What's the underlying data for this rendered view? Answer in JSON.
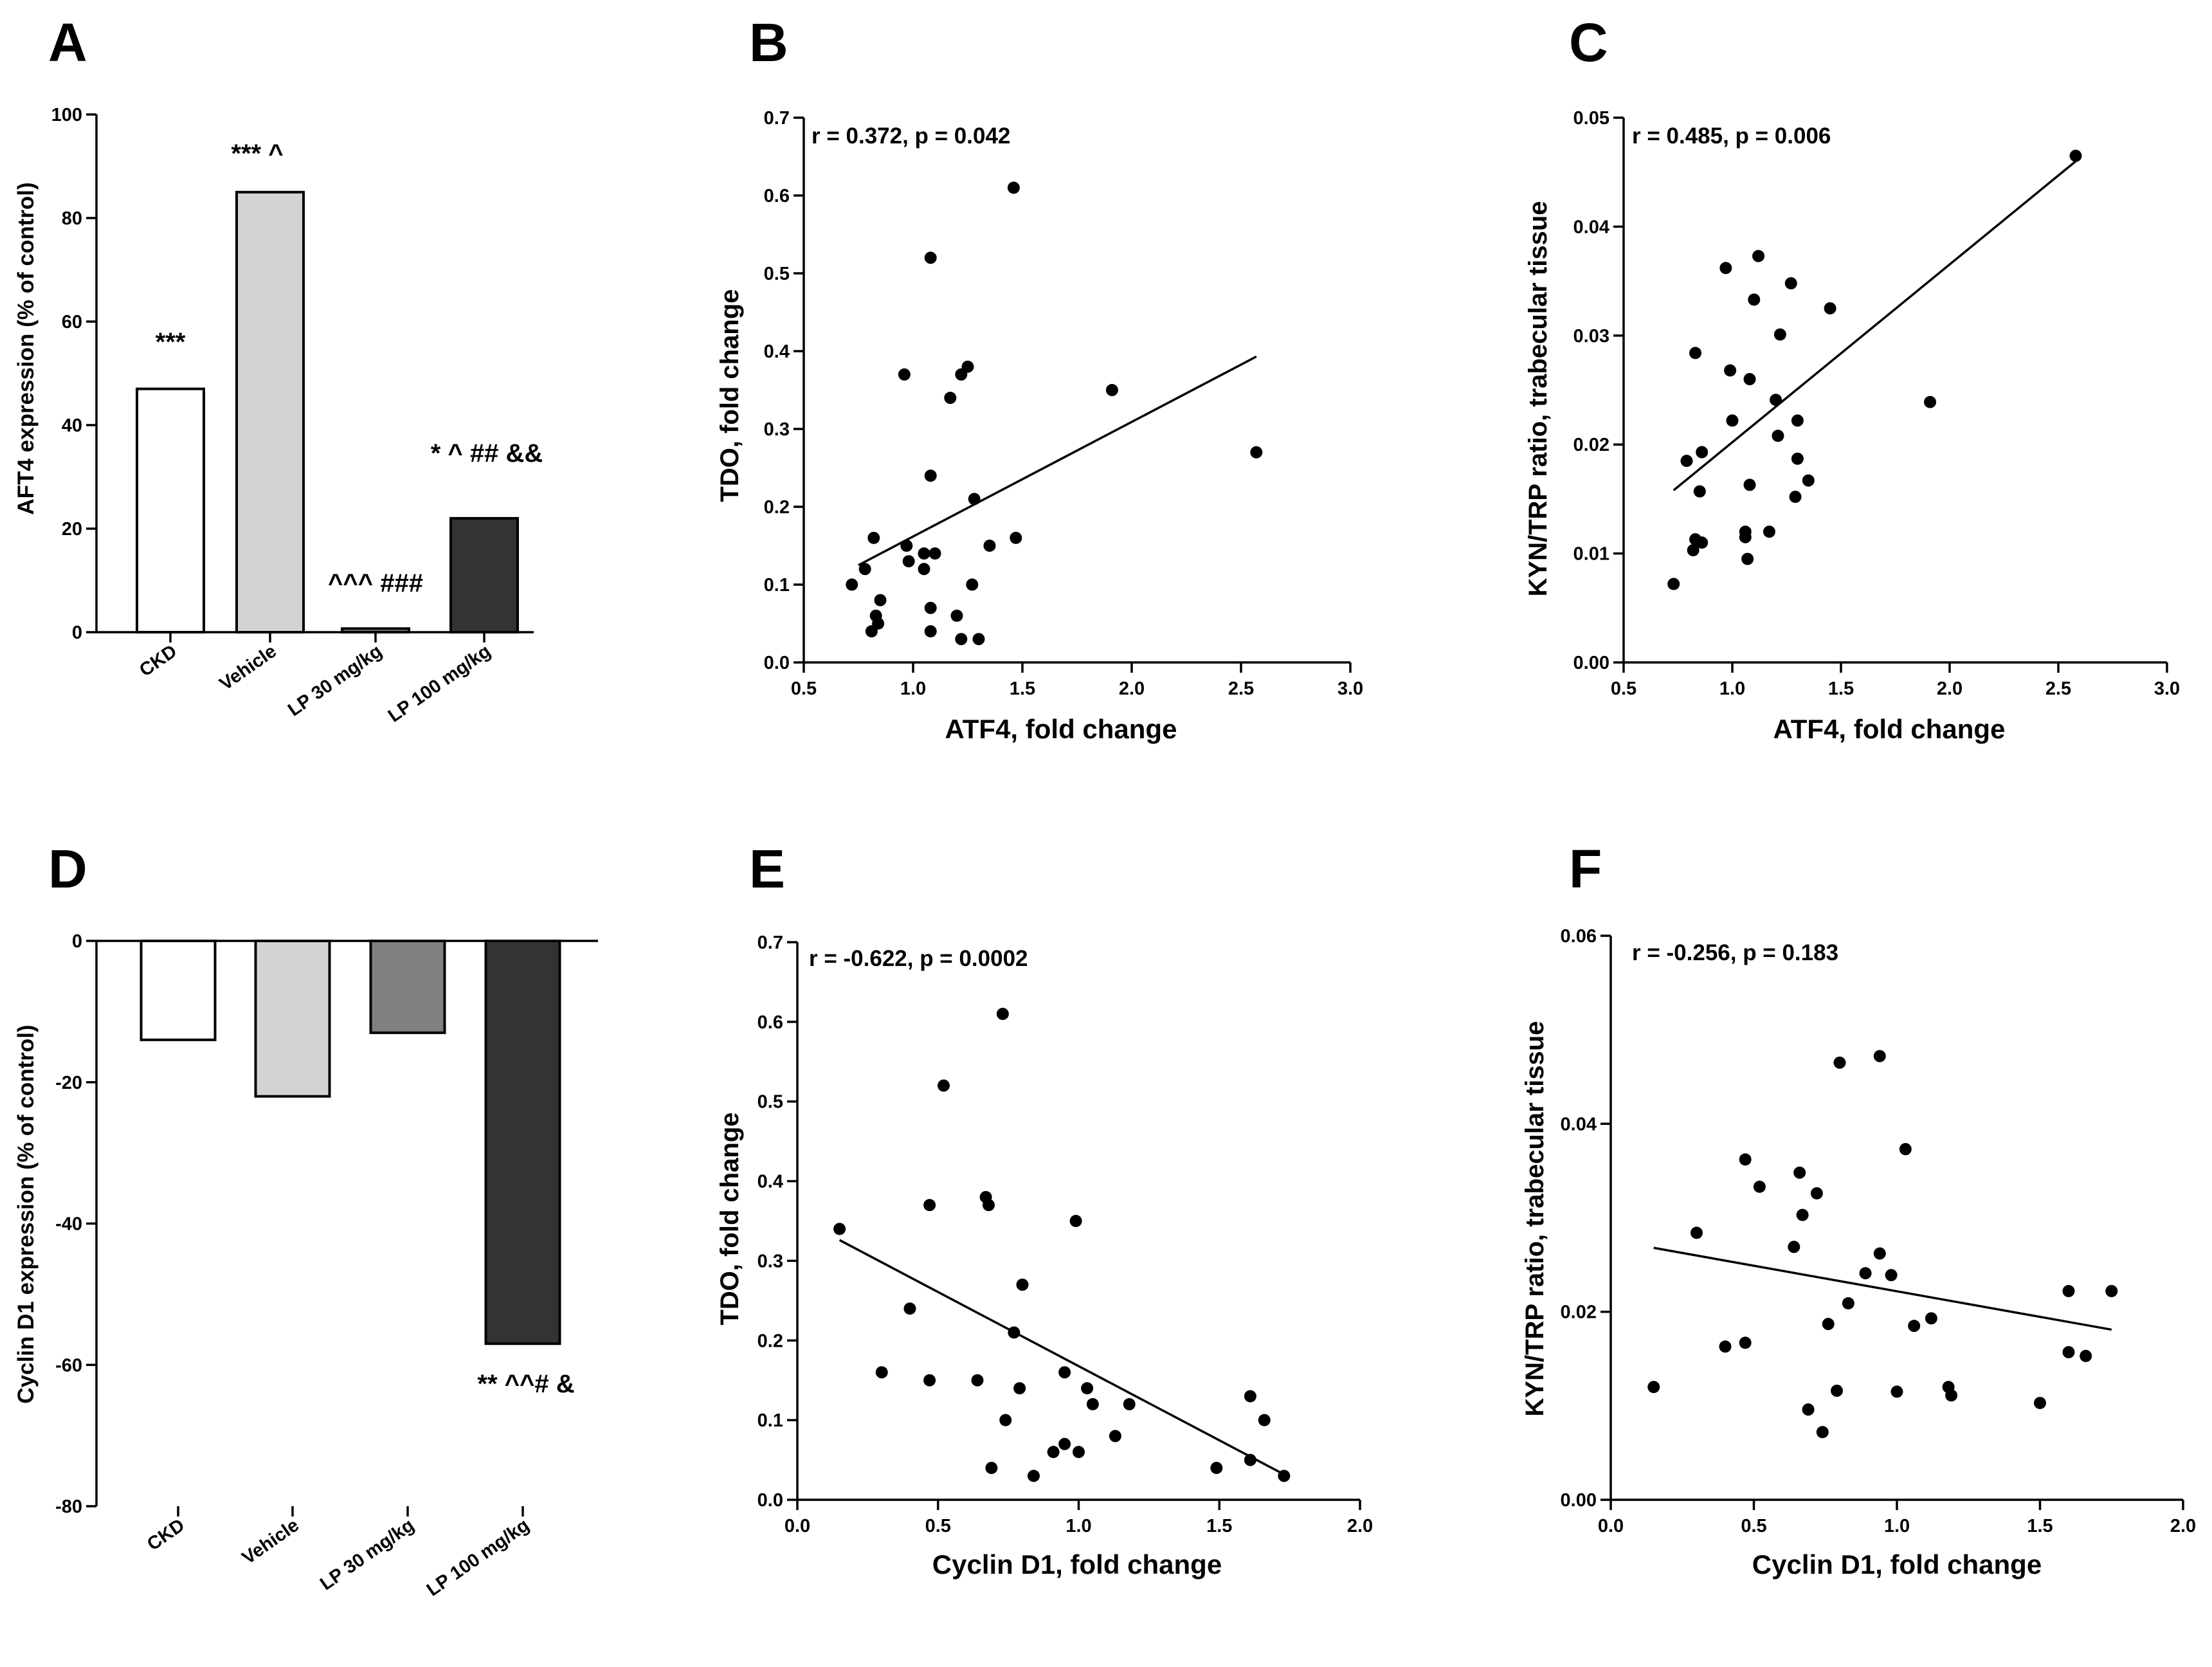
{
  "chart_data": [
    {
      "panel": "A",
      "type": "bar",
      "ylabel": "AFT4 expression (% of control)",
      "ylim": [
        0,
        100
      ],
      "yticks": [
        0,
        20,
        40,
        60,
        80,
        100
      ],
      "categories": [
        "CKD",
        "Vehicle",
        "LP 30 mg/kg",
        "LP 100 mg/kg"
      ],
      "values": [
        47,
        85,
        0.7,
        22
      ],
      "colors": [
        "#ffffff",
        "#d3d3d3",
        "#808080",
        "#333333"
      ],
      "annotations": [
        "***",
        "*** ^",
        "^^^ ###",
        "* ^ ## &&"
      ]
    },
    {
      "panel": "B",
      "type": "scatter",
      "xlabel": "ATF4, fold change",
      "ylabel": "TDO, fold change",
      "xlim": [
        0.5,
        3.0
      ],
      "xticks": [
        "0.5",
        "1.0",
        "1.5",
        "2.0",
        "2.5",
        "3.0"
      ],
      "ylim": [
        0,
        0.7
      ],
      "yticks": [
        "0.0",
        "0.1",
        "0.2",
        "0.3",
        "0.4",
        "0.5",
        "0.6",
        "0.7"
      ],
      "stat": "r = 0.372, p = 0.042",
      "fit": {
        "x": [
          0.75,
          2.57
        ],
        "y": [
          0.125,
          0.393
        ]
      },
      "points": [
        [
          1.46,
          0.61
        ],
        [
          1.08,
          0.52
        ],
        [
          0.96,
          0.37
        ],
        [
          1.22,
          0.37
        ],
        [
          1.25,
          0.38
        ],
        [
          1.17,
          0.34
        ],
        [
          1.91,
          0.35
        ],
        [
          2.57,
          0.27
        ],
        [
          1.08,
          0.24
        ],
        [
          1.28,
          0.21
        ],
        [
          0.82,
          0.16
        ],
        [
          1.47,
          0.16
        ],
        [
          1.35,
          0.15
        ],
        [
          0.97,
          0.15
        ],
        [
          1.05,
          0.14
        ],
        [
          1.1,
          0.14
        ],
        [
          0.98,
          0.13
        ],
        [
          1.05,
          0.12
        ],
        [
          0.78,
          0.12
        ],
        [
          0.72,
          0.1
        ],
        [
          1.27,
          0.1
        ],
        [
          0.85,
          0.08
        ],
        [
          1.08,
          0.07
        ],
        [
          0.83,
          0.06
        ],
        [
          1.2,
          0.06
        ],
        [
          0.84,
          0.05
        ],
        [
          0.81,
          0.04
        ],
        [
          1.08,
          0.04
        ],
        [
          1.22,
          0.03
        ],
        [
          1.3,
          0.03
        ]
      ]
    },
    {
      "panel": "C",
      "type": "scatter",
      "xlabel": "ATF4, fold change",
      "ylabel": "KYN/TRP ratio, trabecular tissue",
      "xlim": [
        0.5,
        3.0
      ],
      "xticks": [
        "0.5",
        "1.0",
        "1.5",
        "2.0",
        "2.5",
        "3.0"
      ],
      "ylim": [
        0,
        0.05
      ],
      "yticks": [
        "0.00",
        "0.01",
        "0.02",
        "0.03",
        "0.04",
        "0.05"
      ],
      "stat": "r = 0.485, p = 0.006",
      "fit": {
        "x": [
          0.73,
          2.58
        ],
        "y": [
          0.0158,
          0.046
        ]
      },
      "points": [
        [
          2.58,
          0.0465
        ],
        [
          1.12,
          0.0373
        ],
        [
          0.97,
          0.0362
        ],
        [
          1.27,
          0.0348
        ],
        [
          1.1,
          0.0333
        ],
        [
          1.45,
          0.0325
        ],
        [
          1.22,
          0.0301
        ],
        [
          0.83,
          0.0284
        ],
        [
          0.99,
          0.0268
        ],
        [
          1.08,
          0.026
        ],
        [
          1.2,
          0.0241
        ],
        [
          1.91,
          0.0239
        ],
        [
          1.0,
          0.0222
        ],
        [
          1.3,
          0.0222
        ],
        [
          1.21,
          0.0208
        ],
        [
          0.86,
          0.0193
        ],
        [
          1.3,
          0.0187
        ],
        [
          0.79,
          0.0185
        ],
        [
          1.35,
          0.0167
        ],
        [
          1.08,
          0.0163
        ],
        [
          0.85,
          0.0157
        ],
        [
          1.29,
          0.0152
        ],
        [
          1.17,
          0.012
        ],
        [
          1.06,
          0.012
        ],
        [
          1.06,
          0.0115
        ],
        [
          0.83,
          0.0113
        ],
        [
          0.86,
          0.011
        ],
        [
          0.82,
          0.0103
        ],
        [
          1.07,
          0.0095
        ],
        [
          0.73,
          0.0072
        ]
      ]
    },
    {
      "panel": "D",
      "type": "bar",
      "ylabel": "Cyclin D1 expression (% of control)",
      "ylim": [
        -80,
        0
      ],
      "yticks": [
        -80,
        -60,
        -40,
        -20,
        0
      ],
      "categories": [
        "CKD",
        "Vehicle",
        "LP 30 mg/kg",
        "LP 100 mg/kg"
      ],
      "values": [
        -14,
        -22,
        -13,
        -57
      ],
      "colors": [
        "#ffffff",
        "#d3d3d3",
        "#808080",
        "#333333"
      ],
      "annotations": [
        "",
        "",
        "",
        "** ^^# &"
      ]
    },
    {
      "panel": "E",
      "type": "scatter",
      "xlabel": "Cyclin D1, fold change",
      "ylabel": "TDO, fold change",
      "xlim": [
        0.0,
        2.0
      ],
      "xticks": [
        "0.0",
        "0.5",
        "1.0",
        "1.5",
        "2.0"
      ],
      "ylim": [
        0,
        0.7
      ],
      "yticks": [
        "0.0",
        "0.1",
        "0.2",
        "0.3",
        "0.4",
        "0.5",
        "0.6",
        "0.7"
      ],
      "stat": "r = -0.622, p = 0.0002",
      "fit": {
        "x": [
          0.15,
          1.74
        ],
        "y": [
          0.326,
          0.03
        ]
      },
      "points": [
        [
          0.73,
          0.61
        ],
        [
          0.52,
          0.52
        ],
        [
          0.67,
          0.38
        ],
        [
          0.68,
          0.37
        ],
        [
          0.47,
          0.37
        ],
        [
          0.99,
          0.35
        ],
        [
          0.15,
          0.34
        ],
        [
          0.8,
          0.27
        ],
        [
          0.4,
          0.24
        ],
        [
          0.77,
          0.21
        ],
        [
          0.3,
          0.16
        ],
        [
          0.95,
          0.16
        ],
        [
          0.47,
          0.15
        ],
        [
          0.64,
          0.15
        ],
        [
          0.79,
          0.14
        ],
        [
          1.03,
          0.14
        ],
        [
          1.61,
          0.13
        ],
        [
          1.05,
          0.12
        ],
        [
          1.18,
          0.12
        ],
        [
          0.74,
          0.1
        ],
        [
          1.66,
          0.1
        ],
        [
          1.13,
          0.08
        ],
        [
          0.95,
          0.07
        ],
        [
          1.0,
          0.06
        ],
        [
          0.91,
          0.06
        ],
        [
          1.61,
          0.05
        ],
        [
          0.69,
          0.04
        ],
        [
          1.49,
          0.04
        ],
        [
          0.84,
          0.03
        ],
        [
          1.73,
          0.03
        ]
      ]
    },
    {
      "panel": "F",
      "type": "scatter",
      "xlabel": "Cyclin D1, fold change",
      "ylabel": "KYN/TRP ratio, trabecular tissue",
      "xlim": [
        0.0,
        2.0
      ],
      "xticks": [
        "0.0",
        "0.5",
        "1.0",
        "1.5",
        "2.0"
      ],
      "ylim": [
        0,
        0.06
      ],
      "yticks": [
        "0.00",
        "0.02",
        "0.04",
        "0.06"
      ],
      "stat": "r = -0.256, p = 0.183",
      "fit": {
        "x": [
          0.15,
          1.75
        ],
        "y": [
          0.0268,
          0.0181
        ]
      },
      "points": [
        [
          0.94,
          0.0472
        ],
        [
          0.8,
          0.0465
        ],
        [
          1.03,
          0.0373
        ],
        [
          0.47,
          0.0362
        ],
        [
          0.52,
          0.0333
        ],
        [
          0.66,
          0.0348
        ],
        [
          0.72,
          0.0326
        ],
        [
          0.67,
          0.0303
        ],
        [
          0.3,
          0.0284
        ],
        [
          0.64,
          0.0269
        ],
        [
          0.94,
          0.0262
        ],
        [
          0.98,
          0.0239
        ],
        [
          0.89,
          0.0241
        ],
        [
          1.6,
          0.0222
        ],
        [
          1.75,
          0.0222
        ],
        [
          0.83,
          0.0209
        ],
        [
          1.12,
          0.0193
        ],
        [
          0.76,
          0.0187
        ],
        [
          1.06,
          0.0185
        ],
        [
          0.47,
          0.0167
        ],
        [
          0.4,
          0.0163
        ],
        [
          1.6,
          0.0157
        ],
        [
          1.66,
          0.0153
        ],
        [
          0.15,
          0.012
        ],
        [
          1.18,
          0.012
        ],
        [
          1.19,
          0.0111
        ],
        [
          0.79,
          0.0116
        ],
        [
          1.0,
          0.0115
        ],
        [
          1.5,
          0.0103
        ],
        [
          0.69,
          0.0096
        ],
        [
          0.74,
          0.0072
        ]
      ]
    }
  ]
}
